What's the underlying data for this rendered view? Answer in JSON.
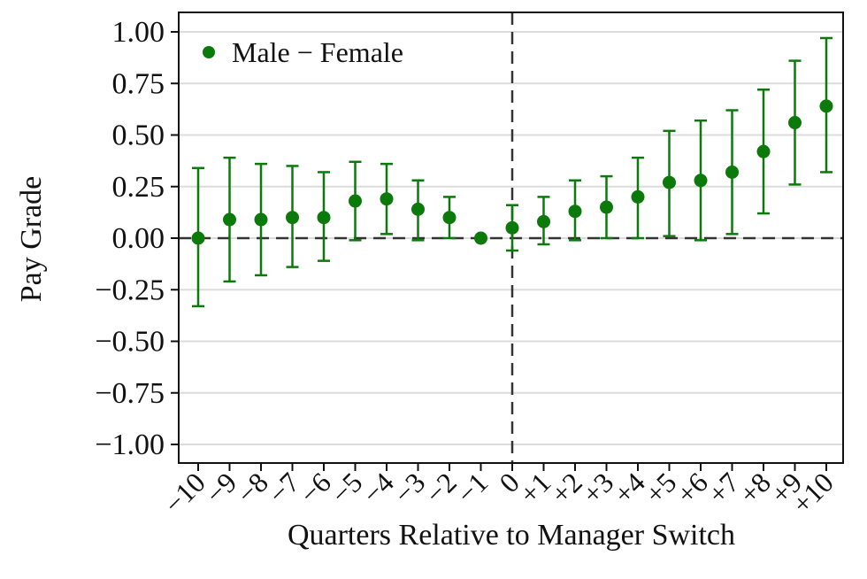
{
  "chart_data": {
    "type": "scatter",
    "title": "",
    "xlabel": "Quarters Relative to Manager Switch",
    "ylabel": "Pay Grade",
    "ylim": [
      -1.0,
      1.0
    ],
    "yticks": [
      1.0,
      0.75,
      0.5,
      0.25,
      0.0,
      -0.25,
      -0.5,
      -0.75,
      -1.0
    ],
    "ytick_labels": [
      "1.00",
      "0.75",
      "0.50",
      "0.25",
      "0.00",
      "−0.25",
      "−0.50",
      "−0.75",
      "−1.00"
    ],
    "x_values": [
      -10,
      -9,
      -8,
      -7,
      -6,
      -5,
      -4,
      -3,
      -2,
      -1,
      0,
      1,
      2,
      3,
      4,
      5,
      6,
      7,
      8,
      9,
      10
    ],
    "x_labels": [
      "−10",
      "−9",
      "−8",
      "−7",
      "−6",
      "−5",
      "−4",
      "−3",
      "−2",
      "−1",
      "0",
      "+1",
      "+2",
      "+3",
      "+4",
      "+5",
      "+6",
      "+7",
      "+8",
      "+9",
      "+10"
    ],
    "legend": {
      "position": "top-left"
    },
    "grid": true,
    "reference_lines": {
      "x": 0,
      "y": 0,
      "style": "dashed"
    },
    "colors": {
      "series": "#0b7a0b",
      "grid": "#dcdcdc",
      "axis": "#111111"
    },
    "series": [
      {
        "name": "Male − Female",
        "points": [
          {
            "x": -10,
            "y": 0.0,
            "lo": -0.33,
            "hi": 0.34
          },
          {
            "x": -9,
            "y": 0.09,
            "lo": -0.21,
            "hi": 0.39
          },
          {
            "x": -8,
            "y": 0.09,
            "lo": -0.18,
            "hi": 0.36
          },
          {
            "x": -7,
            "y": 0.1,
            "lo": -0.14,
            "hi": 0.35
          },
          {
            "x": -6,
            "y": 0.1,
            "lo": -0.11,
            "hi": 0.32
          },
          {
            "x": -5,
            "y": 0.18,
            "lo": -0.01,
            "hi": 0.37
          },
          {
            "x": -4,
            "y": 0.19,
            "lo": 0.02,
            "hi": 0.36
          },
          {
            "x": -3,
            "y": 0.14,
            "lo": -0.01,
            "hi": 0.28
          },
          {
            "x": -2,
            "y": 0.1,
            "lo": 0.0,
            "hi": 0.2
          },
          {
            "x": -1,
            "y": 0.0
          },
          {
            "x": 0,
            "y": 0.05,
            "lo": -0.06,
            "hi": 0.16
          },
          {
            "x": 1,
            "y": 0.08,
            "lo": -0.03,
            "hi": 0.2
          },
          {
            "x": 2,
            "y": 0.13,
            "lo": -0.01,
            "hi": 0.28
          },
          {
            "x": 3,
            "y": 0.15,
            "lo": 0.0,
            "hi": 0.3
          },
          {
            "x": 4,
            "y": 0.2,
            "lo": 0.0,
            "hi": 0.39
          },
          {
            "x": 5,
            "y": 0.27,
            "lo": 0.01,
            "hi": 0.52
          },
          {
            "x": 6,
            "y": 0.28,
            "lo": -0.01,
            "hi": 0.57
          },
          {
            "x": 7,
            "y": 0.32,
            "lo": 0.02,
            "hi": 0.62
          },
          {
            "x": 8,
            "y": 0.42,
            "lo": 0.12,
            "hi": 0.72
          },
          {
            "x": 9,
            "y": 0.56,
            "lo": 0.26,
            "hi": 0.86
          },
          {
            "x": 10,
            "y": 0.64,
            "lo": 0.32,
            "hi": 0.97
          }
        ]
      }
    ]
  }
}
